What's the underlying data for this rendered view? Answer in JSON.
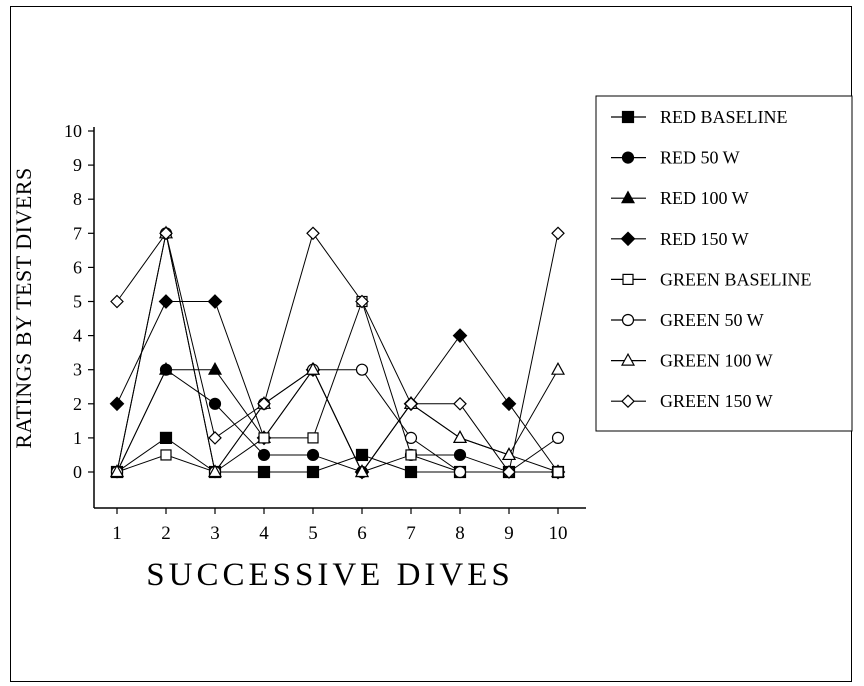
{
  "chart_data": {
    "type": "line",
    "title": "",
    "xlabel": "SUCCESSIVE DIVES",
    "ylabel": "RATINGS BY TEST DIVERS",
    "x": [
      1,
      2,
      3,
      4,
      5,
      6,
      7,
      8,
      9,
      10
    ],
    "xlim": [
      1,
      10
    ],
    "ylim": [
      0,
      10
    ],
    "y_ticks": [
      0,
      1,
      2,
      3,
      4,
      5,
      6,
      7,
      8,
      9,
      10
    ],
    "grid": false,
    "legend_position": "right",
    "series": [
      {
        "name": "RED BASELINE",
        "marker": "square-filled",
        "values": [
          0,
          1,
          0,
          0,
          0,
          0.5,
          0,
          0,
          0,
          0
        ]
      },
      {
        "name": "RED 50 W",
        "marker": "circle-filled",
        "values": [
          0,
          3,
          2,
          0.5,
          0.5,
          0,
          0.5,
          0.5,
          0,
          0
        ]
      },
      {
        "name": "RED 100 W",
        "marker": "triangle-filled",
        "values": [
          0,
          3,
          3,
          1,
          3,
          0,
          2,
          1,
          0.5,
          0
        ]
      },
      {
        "name": "RED 150 W",
        "marker": "diamond-filled",
        "values": [
          2,
          5,
          5,
          1,
          3,
          0,
          2,
          4,
          2,
          0
        ]
      },
      {
        "name": "GREEN BASELINE",
        "marker": "square-open",
        "values": [
          0,
          0.5,
          0,
          1,
          1,
          5,
          0.5,
          0,
          0,
          0
        ]
      },
      {
        "name": "GREEN 50 W",
        "marker": "circle-open",
        "values": [
          0,
          7,
          0,
          2,
          3,
          3,
          1,
          0,
          0,
          1
        ]
      },
      {
        "name": "GREEN 100 W",
        "marker": "triangle-open",
        "values": [
          0,
          7,
          0,
          2,
          3,
          0,
          2,
          1,
          0.5,
          3
        ]
      },
      {
        "name": "GREEN 150 W",
        "marker": "diamond-open",
        "values": [
          5,
          7,
          1,
          2,
          7,
          5,
          2,
          2,
          0,
          7
        ]
      }
    ]
  }
}
